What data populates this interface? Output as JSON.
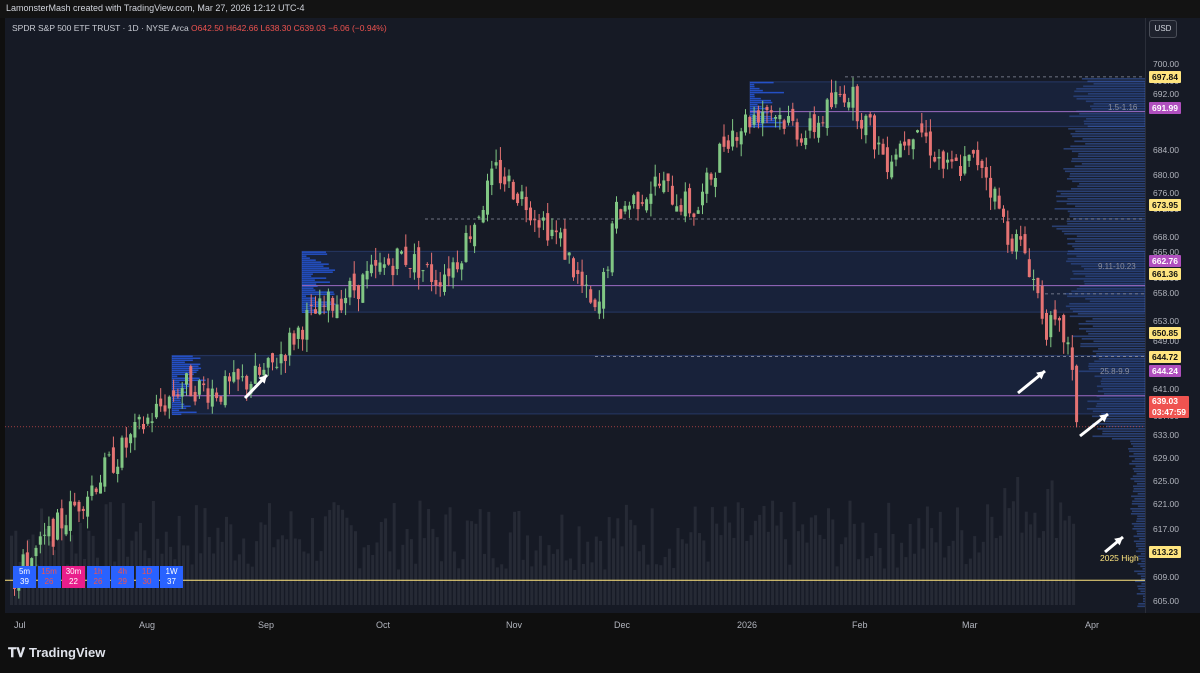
{
  "header": {
    "title": "LamonsterMash created with TradingView.com, Mar 27, 2026 12:12 UTC-4"
  },
  "symbol": {
    "name": "SPDR S&P 500 ETF TRUST · 1D · NYSE Arca",
    "ohlc": "O642.50 H642.66 L638.30 C639.03 −6.06 (−0.94%)"
  },
  "currency": "USD",
  "price_axis": [
    "700.00",
    "696.00",
    "692.00",
    "688.00",
    "684.00",
    "680.00",
    "676.00",
    "672.00",
    "668.00",
    "665.00",
    "662.00",
    "658.00",
    "653.00",
    "649.00",
    "645.00",
    "641.00",
    "637.00",
    "633.00",
    "629.00",
    "625.00",
    "621.00",
    "617.00",
    "613.00",
    "609.00",
    "605.00"
  ],
  "price_tags": [
    {
      "value": "697.84",
      "style": "yellow"
    },
    {
      "value": "691.99",
      "style": "purple"
    },
    {
      "value": "673.95",
      "style": "yellow"
    },
    {
      "value": "662.76",
      "style": "purple"
    },
    {
      "value": "661.36",
      "style": "yellow"
    },
    {
      "value": "650.85",
      "style": "yellow"
    },
    {
      "value": "644.72",
      "style": "yellow"
    },
    {
      "value": "644.24",
      "style": "purple"
    },
    {
      "value": "613.23",
      "style": "yellow"
    }
  ],
  "last_price": {
    "value": "639.03",
    "countdown": "03:47:59"
  },
  "zone_labels": [
    "1.5-1.16",
    "9.11-10.23",
    "25.8-9.9"
  ],
  "high_label": "2025 High",
  "time_axis": [
    "Jul",
    "Aug",
    "Sep",
    "Oct",
    "Nov",
    "Dec",
    "2026",
    "Feb",
    "Mar",
    "Apr"
  ],
  "timeframes": [
    {
      "label": "5m",
      "value": "39",
      "style": "blue"
    },
    {
      "label": "15m",
      "value": "26",
      "style": "red"
    },
    {
      "label": "30m",
      "value": "22",
      "style": "pink"
    },
    {
      "label": "1h",
      "value": "26",
      "style": "red"
    },
    {
      "label": "4h",
      "value": "29",
      "style": "red"
    },
    {
      "label": "1D",
      "value": "30",
      "style": "red"
    },
    {
      "label": "1W",
      "value": "37",
      "style": "blue"
    }
  ],
  "brand": "TradingView",
  "colors": {
    "up": "#81c784",
    "down": "#e57373",
    "zone": "#2962ff",
    "background": "#161a25"
  }
}
